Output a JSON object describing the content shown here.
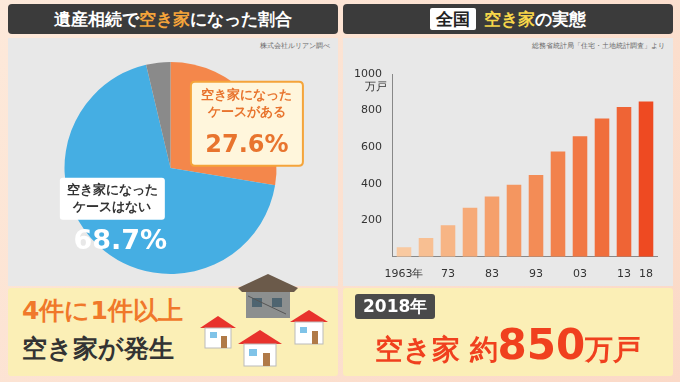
{
  "chart_data": [
    {
      "type": "pie",
      "title": [
        "遺産相続で",
        "空き家",
        "になった割合"
      ],
      "source": "株式会社ルリアン調べ",
      "categories": [
        "空き家になった\nケースがある",
        "空き家になった\nケースはない",
        null
      ],
      "values": [
        27.6,
        68.7,
        3.7
      ],
      "value_labels": [
        "27.6%",
        "68.7%",
        null
      ],
      "colors": [
        "#f4874b",
        "#45aee3",
        "#8a8a8a"
      ],
      "data_labels": true,
      "annotation": [
        "4件に1件以上",
        "空き家が発生"
      ]
    },
    {
      "type": "bar",
      "title": [
        "全国",
        "空き家",
        "の実態"
      ],
      "source": "総務省統計局「住宅・土地統計調査」より",
      "categories": [
        "1963年",
        null,
        "73",
        null,
        "83",
        null,
        "93",
        null,
        "03",
        null,
        "13",
        "18"
      ],
      "values": [
        52,
        103,
        172,
        268,
        330,
        394,
        448,
        576,
        659,
        757,
        820,
        849
      ],
      "colors": [
        "#f9c9a0",
        "#f8bf92",
        "#f7b585",
        "#f6aa78",
        "#f5a06c",
        "#f49660",
        "#f38c56",
        "#f2824c",
        "#f17844",
        "#f06e3c",
        "#ef6435",
        "#ee4a22"
      ],
      "ylim": [
        0,
        1000
      ],
      "yticks": [
        200,
        400,
        600,
        800,
        1000
      ],
      "y_label": "万戸",
      "grid": false,
      "data_labels": false,
      "annotation": [
        "2018年",
        "空き家 約",
        "850",
        "万戸"
      ]
    }
  ]
}
